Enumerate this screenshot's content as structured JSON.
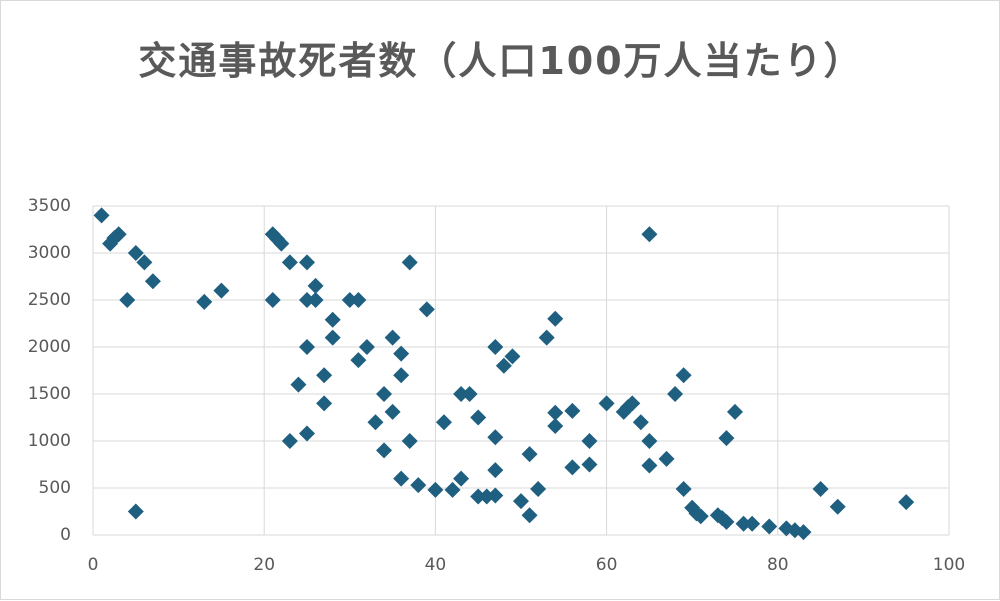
{
  "chart_data": {
    "type": "scatter",
    "title": "交通事故死者数（人口100万人当たり）",
    "x": [
      1,
      2,
      2.5,
      3,
      4,
      5,
      6,
      7,
      5,
      13,
      15,
      21,
      21.5,
      22,
      21,
      23,
      25,
      23,
      25,
      25,
      25,
      26,
      26,
      24,
      27,
      27,
      28,
      28,
      30,
      31,
      31,
      32,
      33,
      34,
      34,
      35,
      35,
      36,
      36,
      36,
      37,
      37,
      38,
      39,
      40,
      41,
      42,
      43,
      43,
      44,
      45,
      45,
      46,
      47,
      47,
      47,
      47,
      48,
      49,
      50,
      51,
      51,
      52,
      53,
      54,
      54,
      54,
      56,
      56,
      58,
      58,
      60,
      62,
      62.5,
      63,
      64,
      65,
      65,
      65,
      67,
      68,
      69,
      69,
      70,
      70.5,
      71,
      73,
      73.5,
      74,
      74,
      75,
      76,
      77,
      79,
      81,
      82,
      83,
      85,
      87,
      95
    ],
    "values": [
      3400,
      3100,
      3160,
      3200,
      2500,
      3000,
      2900,
      2700,
      250,
      2480,
      2600,
      3200,
      3150,
      3100,
      2500,
      2900,
      2900,
      1000,
      1080,
      2000,
      2500,
      2650,
      2500,
      1600,
      1700,
      1400,
      2290,
      2100,
      2500,
      2500,
      1860,
      2000,
      1200,
      1500,
      900,
      2100,
      1310,
      1930,
      1700,
      600,
      2900,
      1000,
      530,
      2400,
      480,
      1200,
      480,
      600,
      1500,
      1500,
      1250,
      410,
      410,
      2000,
      1040,
      690,
      420,
      1800,
      1900,
      360,
      860,
      210,
      490,
      2100,
      2300,
      1300,
      1160,
      1320,
      720,
      750,
      1000,
      1400,
      1310,
      1360,
      1400,
      1200,
      3200,
      1000,
      740,
      810,
      1500,
      1700,
      490,
      290,
      230,
      200,
      210,
      180,
      1030,
      140,
      1310,
      120,
      120,
      90,
      70,
      50,
      30,
      490,
      300,
      350
    ],
    "color": "#1f5f7f",
    "xlim": [
      0,
      100
    ],
    "xticks": [
      0,
      20,
      40,
      60,
      80,
      100
    ],
    "ylim": [
      0,
      3500
    ],
    "yticks": [
      0,
      500,
      1000,
      1500,
      2000,
      2500,
      3000,
      3500
    ],
    "grid": true
  }
}
